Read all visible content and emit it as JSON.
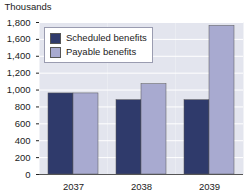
{
  "chart_data": {
    "type": "bar",
    "categories": [
      "2037",
      "2038",
      "2039"
    ],
    "series": [
      {
        "name": "Scheduled benefits",
        "color": "#2f3a6b",
        "values": [
          960,
          880,
          880
        ]
      },
      {
        "name": "Payable benefits",
        "color": "#a8aad0",
        "values": [
          960,
          1070,
          1760
        ]
      }
    ],
    "y_label": "Thousands",
    "ylim": [
      0,
      1800
    ],
    "yticks": [
      0,
      200,
      400,
      600,
      800,
      {
        "value": 1000,
        "label": "1,000"
      },
      {
        "value": 1200,
        "label": "1,200"
      },
      {
        "value": 1400,
        "label": "1,400"
      },
      {
        "value": 1600,
        "label": "1,600"
      },
      {
        "value": 1800,
        "label": "1,800"
      }
    ],
    "grid": true,
    "legend": "top-left"
  }
}
